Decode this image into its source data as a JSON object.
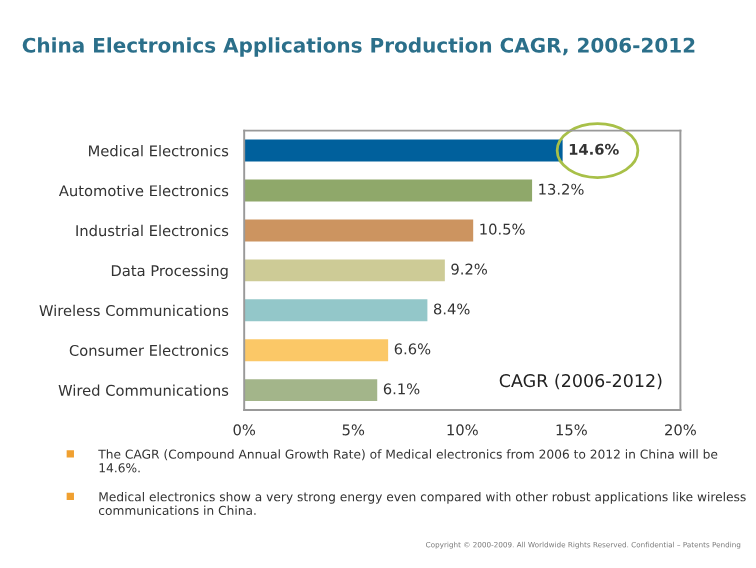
{
  "chart_data": {
    "type": "bar",
    "orientation": "horizontal",
    "title": "China Electronics Applications Production CAGR, 2006-2012",
    "categories": [
      "Medical Electronics",
      "Automotive Electronics",
      "Industrial Electronics",
      "Data Processing",
      "Wireless Communications",
      "Consumer Electronics",
      "Wired Communications"
    ],
    "values": [
      14.6,
      13.2,
      10.5,
      9.2,
      8.4,
      6.6,
      6.1
    ],
    "colors": [
      "#00609c",
      "#8fa86a",
      "#cc9460",
      "#cdcb96",
      "#93c7c9",
      "#fbc867",
      "#a3b58a"
    ],
    "value_labels": [
      "14.6%",
      "13.2%",
      "10.5%",
      "9.2%",
      "8.4%",
      "6.6%",
      "6.1%"
    ],
    "xlim": [
      0,
      20
    ],
    "xticks": [
      {
        "value": 0,
        "label": "0%"
      },
      {
        "value": 5,
        "label": "5%"
      },
      {
        "value": 10,
        "label": "10%"
      },
      {
        "value": 15,
        "label": "15%"
      },
      {
        "value": 20,
        "label": "20%"
      }
    ],
    "grid": false,
    "legend": false,
    "annotations": [
      "CAGR (2006-2012)",
      "The CAGR (Compound Annual Growth Rate) of Medical electronics from 2006 to 2012 in China will be 14.6%.",
      "Medical electronics show a very strong energy even compared with other robust applications like wireless communications in China.",
      "Copyright © 2000-2009. All Worldwide Rights Reserved. Confidential – Patents Pending"
    ]
  }
}
